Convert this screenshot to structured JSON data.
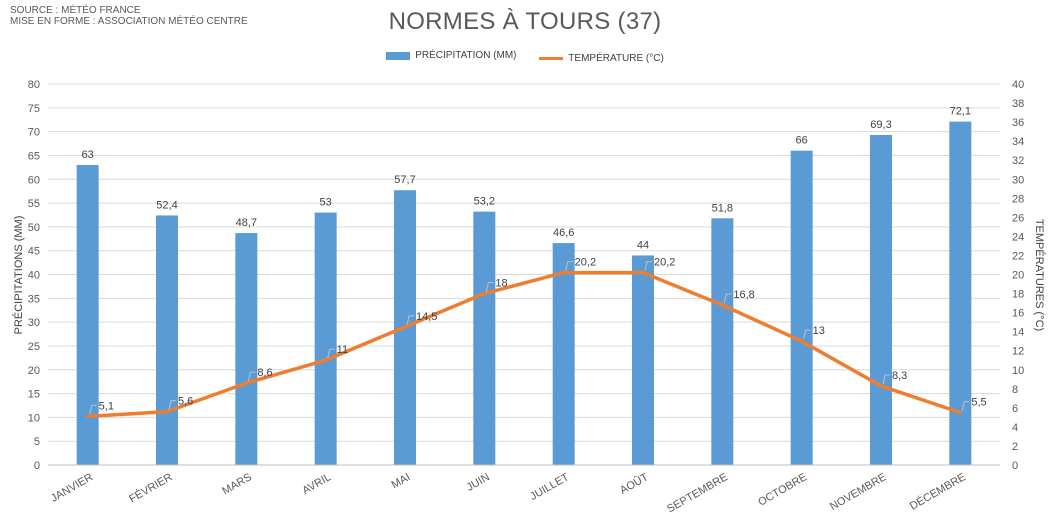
{
  "source": {
    "line1": "SOURCE : MÉTÉO FRANCE",
    "line2": "MISE EN FORME : ASSOCIATION MÉTÉO CENTRE"
  },
  "chart_data": {
    "type": "bar",
    "title": "NORMES À TOURS (37)",
    "categories": [
      "JANVIER",
      "FÉVRIER",
      "MARS",
      "AVRIL",
      "MAI",
      "JUIN",
      "JUILLET",
      "AOÛT",
      "SEPTEMBRE",
      "OCTOBRE",
      "NOVEMBRE",
      "DÉCEMBRE"
    ],
    "series": [
      {
        "name": "PRÉCIPITATION (MM)",
        "type": "bar",
        "axis": "left",
        "color": "#5b9bd5",
        "values": [
          63,
          52.4,
          48.7,
          53,
          57.7,
          53.2,
          46.6,
          44,
          51.8,
          66,
          69.3,
          72.1
        ],
        "labels": [
          "63",
          "52,4",
          "48,7",
          "53",
          "57,7",
          "53,2",
          "46,6",
          "44",
          "51,8",
          "66",
          "69,3",
          "72,1"
        ]
      },
      {
        "name": "TEMPÉRATURE (°C)",
        "type": "line",
        "axis": "right",
        "color": "#ed7d31",
        "values": [
          5.1,
          5.6,
          8.6,
          11,
          14.5,
          18,
          20.2,
          20.2,
          16.8,
          13,
          8.3,
          5.5
        ],
        "labels": [
          "5,1",
          "5,6",
          "8,6",
          "11",
          "14,5",
          "18",
          "20,2",
          "20,2",
          "16,8",
          "13",
          "8,3",
          "5,5"
        ]
      }
    ],
    "ylabel": "PRÉCIPITATIONS (MM)",
    "y2label": "TEMPÉRATURES (°C)",
    "ylim": [
      0,
      80
    ],
    "y2lim": [
      0,
      40
    ],
    "yticks": [
      "0",
      "5",
      "10",
      "15",
      "20",
      "25",
      "30",
      "35",
      "40",
      "45",
      "50",
      "55",
      "60",
      "65",
      "70",
      "75",
      "80"
    ],
    "y2ticks": [
      "0",
      "2",
      "4",
      "6",
      "8",
      "10",
      "12",
      "14",
      "16",
      "18",
      "20",
      "22",
      "24",
      "26",
      "28",
      "30",
      "32",
      "34",
      "36",
      "38",
      "40"
    ],
    "legend_position": "top",
    "grid": true
  }
}
